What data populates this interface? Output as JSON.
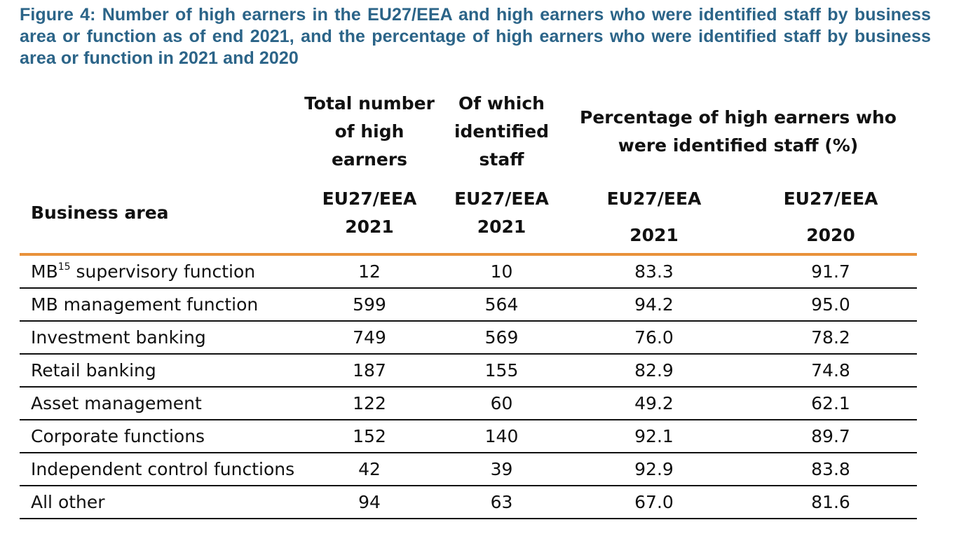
{
  "caption": "Figure 4: Number of high earners in the EU27/EEA and high earners who were identified staff by business area or function as of end 2021, and the percentage of high earners who were identified staff by business area or function in 2021 and 2020",
  "header": {
    "business_area": "Business area",
    "total_high_earners": "Total number of high earners",
    "identified_staff": "Of which identified staff",
    "percentage_group": "Percentage of high earners who were identified staff (%)",
    "col_total": {
      "region": "EU27/EEA",
      "year": "2021"
    },
    "col_identified": {
      "region": "EU27/EEA",
      "year": "2021"
    },
    "col_pct_2021": {
      "region": "EU27/EEA",
      "year": "2021"
    },
    "col_pct_2020": {
      "region": "EU27/EEA",
      "year": "2020"
    }
  },
  "rows": [
    {
      "area": "MB",
      "footnote": "15",
      "area_suffix": " supervisory function",
      "total": "12",
      "identified": "10",
      "pct_2021": "83.3",
      "pct_2020": "91.7"
    },
    {
      "area": "MB management function",
      "total": "599",
      "identified": "564",
      "pct_2021": "94.2",
      "pct_2020": "95.0"
    },
    {
      "area": "Investment banking",
      "total": "749",
      "identified": "569",
      "pct_2021": "76.0",
      "pct_2020": "78.2"
    },
    {
      "area": "Retail banking",
      "total": "187",
      "identified": "155",
      "pct_2021": "82.9",
      "pct_2020": "74.8"
    },
    {
      "area": "Asset management",
      "total": "122",
      "identified": "60",
      "pct_2021": "49.2",
      "pct_2020": "62.1"
    },
    {
      "area": "Corporate functions",
      "total": "152",
      "identified": "140",
      "pct_2021": "92.1",
      "pct_2020": "89.7"
    },
    {
      "area": "Independent control functions",
      "total": "42",
      "identified": "39",
      "pct_2021": "92.9",
      "pct_2020": "83.8"
    },
    {
      "area": "All other",
      "total": "94",
      "identified": "63",
      "pct_2021": "67.0",
      "pct_2020": "81.6"
    }
  ],
  "colors": {
    "caption": "#2b6488",
    "header_rule": "#e8913a",
    "row_rule": "#111111"
  }
}
